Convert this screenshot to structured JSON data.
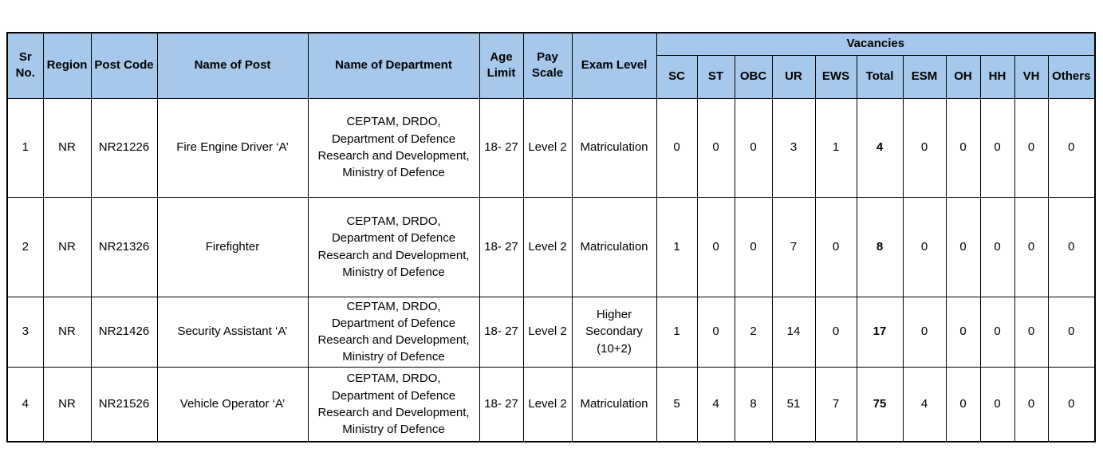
{
  "page": {
    "background": "#ffffff",
    "header_fill": "#A6C9EB",
    "border_color": "#000000"
  },
  "table": {
    "columns": [
      {
        "key": "sr_no",
        "label": "Sr No."
      },
      {
        "key": "region",
        "label": "Region"
      },
      {
        "key": "post_code",
        "label": "Post Code"
      },
      {
        "key": "name_of_post",
        "label": "Name of Post"
      },
      {
        "key": "department",
        "label": "Name of Department"
      },
      {
        "key": "age_limit",
        "label": "Age Limit"
      },
      {
        "key": "pay_scale",
        "label": "Pay Scale"
      },
      {
        "key": "exam_level",
        "label": "Exam Level"
      }
    ],
    "vacancies_group_label": "Vacancies",
    "vacancy_columns": [
      {
        "key": "sc",
        "label": "SC"
      },
      {
        "key": "st",
        "label": "ST"
      },
      {
        "key": "obc",
        "label": "OBC"
      },
      {
        "key": "ur",
        "label": "UR"
      },
      {
        "key": "ews",
        "label": "EWS"
      },
      {
        "key": "total",
        "label": "Total"
      },
      {
        "key": "esm",
        "label": "ESM"
      },
      {
        "key": "oh",
        "label": "OH"
      },
      {
        "key": "hh",
        "label": "HH"
      },
      {
        "key": "vh",
        "label": "VH"
      },
      {
        "key": "others",
        "label": "Others"
      }
    ],
    "rows": [
      {
        "sr_no": "1",
        "region": "NR",
        "post_code": "NR21226",
        "name_of_post": "Fire Engine Driver ‘A’",
        "department": "CEPTAM, DRDO,\nDepartment of Defence\nResearch and Development,\nMinistry of Defence",
        "age_limit": "18- 27",
        "pay_scale": "Level 2",
        "exam_level": "Matriculation",
        "vacancies": {
          "sc": "0",
          "st": "0",
          "obc": "0",
          "ur": "3",
          "ews": "1",
          "total": "4",
          "esm": "0",
          "oh": "0",
          "hh": "0",
          "vh": "0",
          "others": "0"
        }
      },
      {
        "sr_no": "2",
        "region": "NR",
        "post_code": "NR21326",
        "name_of_post": "Firefighter",
        "department": "CEPTAM, DRDO,\nDepartment of Defence\nResearch and Development,\nMinistry of Defence",
        "age_limit": "18- 27",
        "pay_scale": "Level 2",
        "exam_level": "Matriculation",
        "vacancies": {
          "sc": "1",
          "st": "0",
          "obc": "0",
          "ur": "7",
          "ews": "0",
          "total": "8",
          "esm": "0",
          "oh": "0",
          "hh": "0",
          "vh": "0",
          "others": "0"
        }
      },
      {
        "sr_no": "3",
        "region": "NR",
        "post_code": "NR21426",
        "name_of_post": "Security Assistant ‘A’",
        "department": "CEPTAM, DRDO,\nDepartment of Defence\nResearch and Development,\nMinistry of Defence",
        "age_limit": "18- 27",
        "pay_scale": "Level 2",
        "exam_level": "Higher Secondary (10+2)",
        "vacancies": {
          "sc": "1",
          "st": "0",
          "obc": "2",
          "ur": "14",
          "ews": "0",
          "total": "17",
          "esm": "0",
          "oh": "0",
          "hh": "0",
          "vh": "0",
          "others": "0"
        }
      },
      {
        "sr_no": "4",
        "region": "NR",
        "post_code": "NR21526",
        "name_of_post": "Vehicle Operator ‘A’",
        "department": "CEPTAM, DRDO,\nDepartment of Defence\nResearch and Development,\nMinistry of Defence",
        "age_limit": "18- 27",
        "pay_scale": "Level 2",
        "exam_level": "Matriculation",
        "vacancies": {
          "sc": "5",
          "st": "4",
          "obc": "8",
          "ur": "51",
          "ews": "7",
          "total": "75",
          "esm": "4",
          "oh": "0",
          "hh": "0",
          "vh": "0",
          "others": "0"
        }
      }
    ]
  }
}
